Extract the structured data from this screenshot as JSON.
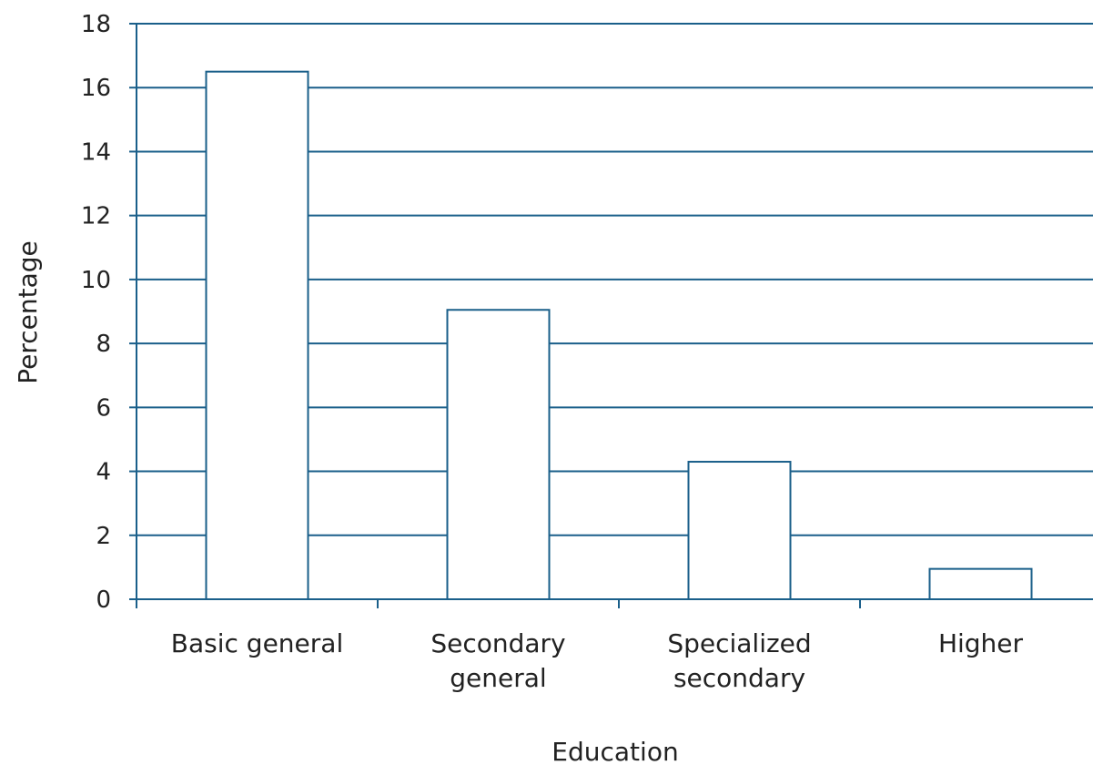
{
  "chart_data": {
    "type": "bar",
    "categories": [
      [
        "Basic general"
      ],
      [
        "Secondary",
        "general"
      ],
      [
        "Specialized",
        "secondary"
      ],
      [
        "Higher"
      ]
    ],
    "values": [
      16.5,
      9.05,
      4.3,
      0.95
    ],
    "xlabel": "Education",
    "ylabel": "Percentage",
    "ylim": [
      0,
      18
    ],
    "yticks": [
      0,
      2,
      4,
      6,
      8,
      10,
      12,
      14,
      16,
      18
    ],
    "grid": true,
    "colors": {
      "bar_fill": "#ffffff",
      "bar_stroke": "#1a5f8a",
      "grid": "#1a5f8a",
      "axis": "#1a5f8a",
      "text": "#222222"
    }
  }
}
